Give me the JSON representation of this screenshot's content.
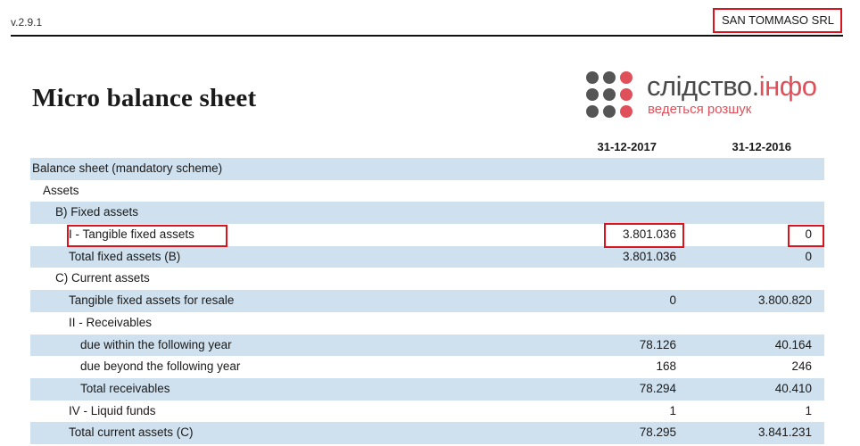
{
  "header": {
    "version": "v.2.9.1",
    "company": "SAN TOMMASO SRL"
  },
  "title": "Micro balance sheet",
  "logo": {
    "main": "слідство.",
    "accent": "інфо",
    "sub": "ведеться розшук"
  },
  "columns": {
    "year1": "31-12-2017",
    "year2": "31-12-2016"
  },
  "rows": [
    {
      "label": "Balance sheet (mandatory scheme)",
      "v1": "",
      "v2": ""
    },
    {
      "label": "Assets",
      "v1": "",
      "v2": ""
    },
    {
      "label": "B) Fixed assets",
      "v1": "",
      "v2": ""
    },
    {
      "label": "I - Tangible fixed assets",
      "v1": "3.801.036",
      "v2": "0"
    },
    {
      "label": "Total fixed assets (B)",
      "v1": "3.801.036",
      "v2": "0"
    },
    {
      "label": "C) Current assets",
      "v1": "",
      "v2": ""
    },
    {
      "label": "Tangible fixed assets for resale",
      "v1": "0",
      "v2": "3.800.820"
    },
    {
      "label": "II - Receivables",
      "v1": "",
      "v2": ""
    },
    {
      "label": "due within the following year",
      "v1": "78.126",
      "v2": "40.164"
    },
    {
      "label": "due beyond the following year",
      "v1": "168",
      "v2": "246"
    },
    {
      "label": "Total receivables",
      "v1": "78.294",
      "v2": "40.410"
    },
    {
      "label": "IV - Liquid funds",
      "v1": "1",
      "v2": "1"
    },
    {
      "label": "Total current assets (C)",
      "v1": "78.295",
      "v2": "3.841.231"
    }
  ],
  "colors": {
    "row_shade": "#cfe0ee",
    "highlight_box": "#d9141e",
    "logo_red": "#e0505a",
    "logo_gray": "#4a4a4a"
  }
}
